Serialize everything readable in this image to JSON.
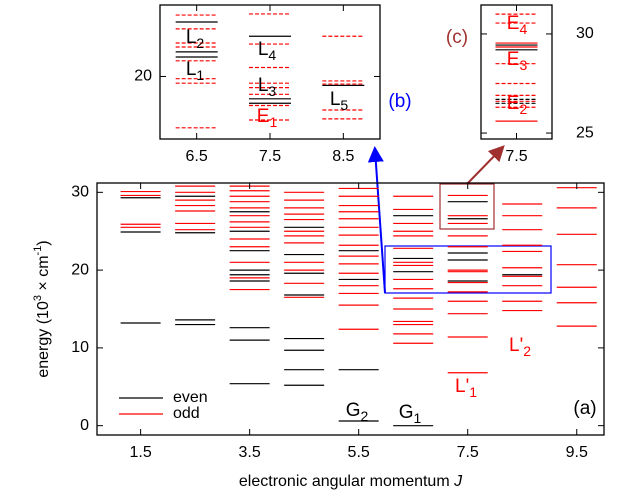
{
  "chart_data": [
    {
      "type": "energy-levels",
      "xlabel": [
        "electronic angular momentum ",
        "J"
      ],
      "ylabel": [
        "energy (10",
        "3",
        " × cm",
        "-1",
        ")"
      ],
      "xlim": [
        0.7,
        10
      ],
      "ylim": [
        -1.2,
        31.2
      ],
      "xticks": [
        1.5,
        3.5,
        5.5,
        7.5,
        9.5
      ],
      "yticks": [
        0,
        10,
        20,
        30
      ],
      "yaxis_side": "left",
      "legend": "lower left",
      "series": [
        {
          "name": "even",
          "color": "#000000",
          "dash": false,
          "x": [
            1.5,
            1.5,
            1.5,
            2.5,
            2.5,
            2.5,
            2.5,
            3.5,
            3.5,
            3.5,
            3.5,
            3.5,
            3.5,
            3.5,
            3.5,
            3.5,
            4.5,
            4.5,
            4.5,
            4.5,
            4.5,
            4.5,
            4.5,
            4.5,
            5.5,
            5.5,
            5.5,
            5.5,
            6.5,
            6.5,
            6.5,
            6.5,
            7.5,
            7.5,
            7.5,
            7.5,
            7.5,
            8.5
          ],
          "values": [
            13.2,
            24.9,
            29.3,
            13.0,
            13.6,
            24.8,
            29.5,
            5.4,
            11.0,
            12.6,
            18.6,
            19.4,
            20.0,
            22.5,
            25.0,
            27.5,
            5.2,
            7.2,
            9.7,
            11.2,
            16.8,
            19.6,
            22.0,
            25.5,
            0.6,
            7.2,
            18.8,
            22.5,
            0.0,
            19.8,
            21.5,
            27.0,
            18.6,
            21.3,
            22.2,
            26.6,
            28.8,
            19.4
          ]
        },
        {
          "name": "odd",
          "color": "#ff0000",
          "dash": false,
          "x": [
            1.5,
            1.5,
            1.5,
            1.5,
            2.5,
            2.5,
            2.5,
            2.5,
            2.5,
            2.5,
            2.5,
            3.5,
            3.5,
            3.5,
            3.5,
            3.5,
            3.5,
            3.5,
            3.5,
            3.5,
            3.5,
            3.5,
            3.5,
            3.5,
            4.5,
            4.5,
            4.5,
            4.5,
            4.5,
            4.5,
            4.5,
            4.5,
            4.5,
            4.5,
            4.5,
            4.5,
            5.5,
            5.5,
            5.5,
            5.5,
            5.5,
            5.5,
            5.5,
            5.5,
            5.5,
            5.5,
            5.5,
            5.5,
            5.5,
            5.5,
            5.5,
            6.5,
            6.5,
            6.5,
            6.5,
            6.5,
            6.5,
            6.5,
            6.5,
            6.5,
            6.5,
            6.5,
            6.5,
            6.5,
            6.5,
            6.5,
            6.5,
            7.5,
            7.5,
            7.5,
            7.5,
            7.5,
            7.5,
            7.5,
            7.5,
            7.5,
            7.5,
            7.5,
            7.5,
            7.5,
            8.5,
            8.5,
            8.5,
            8.5,
            8.5,
            8.5,
            8.5,
            8.5,
            8.5,
            8.5,
            9.5,
            9.5,
            9.5,
            9.5,
            9.5,
            9.5,
            9.5
          ],
          "values": [
            25.5,
            25.9,
            29.6,
            30.1,
            25.2,
            26.0,
            27.6,
            28.3,
            29.0,
            30.0,
            30.8,
            17.5,
            19.0,
            21.0,
            23.0,
            24.0,
            25.5,
            26.2,
            27.0,
            28.0,
            28.8,
            29.5,
            30.2,
            30.8,
            16.5,
            18.3,
            20.0,
            21.0,
            23.5,
            24.4,
            25.0,
            26.5,
            27.2,
            28.0,
            29.0,
            30.0,
            12.4,
            15.5,
            17.0,
            18.0,
            19.6,
            20.8,
            21.8,
            23.2,
            24.5,
            25.5,
            26.6,
            27.5,
            28.3,
            29.5,
            30.5,
            10.6,
            11.8,
            13.0,
            13.4,
            15.0,
            16.4,
            17.6,
            18.8,
            20.6,
            21.0,
            22.8,
            24.4,
            25.0,
            26.0,
            27.8,
            29.5,
            6.8,
            11.4,
            14.4,
            16.0,
            17.2,
            18.4,
            19.8,
            20.0,
            23.0,
            24.4,
            26.0,
            27.0,
            29.6,
            14.8,
            16.0,
            18.0,
            19.2,
            20.3,
            22.4,
            23.2,
            25.2,
            27.0,
            28.5,
            12.8,
            15.8,
            17.8,
            20.7,
            24.6,
            28.0,
            30.6
          ]
        }
      ],
      "annotations": [
        {
          "base": "G",
          "sub": "2",
          "color": "#000000"
        },
        {
          "base": "G",
          "sub": "1",
          "color": "#000000"
        },
        {
          "base": "L'",
          "sub": "1",
          "color": "#ff0000"
        },
        {
          "base": "L'",
          "sub": "2",
          "color": "#ff0000"
        },
        {
          "base": "(a)",
          "sub": "",
          "color": "#000000"
        }
      ]
    },
    {
      "type": "energy-levels",
      "xlim": [
        6,
        9
      ],
      "ylim": [
        17.2,
        23.2
      ],
      "xticks": [
        6.5,
        7.5,
        8.5
      ],
      "yticks": [
        20
      ],
      "yaxis_side": "left",
      "series": [
        {
          "color": "#000000",
          "dash": false,
          "x": [
            6.5,
            6.5,
            6.5,
            7.5,
            7.5,
            7.5,
            8.5
          ],
          "values": [
            22.44,
            21.1,
            20.87,
            21.8,
            19.0,
            18.8,
            19.6
          ]
        },
        {
          "color": "#ff0000",
          "dash": true,
          "x": [
            6.5,
            6.5,
            6.5,
            6.5,
            6.5,
            6.5,
            6.5,
            6.5,
            7.5,
            7.5,
            7.5,
            7.5,
            7.5,
            7.5,
            7.5,
            7.5,
            8.5,
            8.5,
            8.5,
            8.5,
            8.5
          ],
          "values": [
            22.75,
            22.13,
            21.5,
            21.32,
            20.7,
            19.9,
            19.7,
            17.7,
            22.8,
            21.45,
            20.4,
            19.7,
            19.5,
            19.2,
            18.7,
            18.05,
            21.8,
            19.8,
            19.66,
            18.5,
            18.1
          ]
        }
      ],
      "annotations": [
        {
          "base": "L",
          "sub": "2",
          "color": "#000000"
        },
        {
          "base": "L",
          "sub": "1",
          "color": "#000000"
        },
        {
          "base": "L",
          "sub": "4",
          "color": "#000000"
        },
        {
          "base": "L",
          "sub": "3",
          "color": "#000000"
        },
        {
          "base": "E",
          "sub": "1",
          "color": "#ff0000"
        },
        {
          "base": "L",
          "sub": "5",
          "color": "#000000"
        },
        {
          "base": "(b)",
          "sub": "",
          "color": "#0000ff"
        }
      ]
    },
    {
      "type": "energy-levels",
      "xlim": [
        7,
        8
      ],
      "ylim": [
        24.7,
        31.46
      ],
      "xticks": [
        7.5
      ],
      "yticks": [
        25,
        30
      ],
      "yaxis_side": "right",
      "series": [
        {
          "color": "#000000",
          "dash": false,
          "x": [
            7.5,
            7.5
          ],
          "values": [
            29.44,
            29.2
          ]
        },
        {
          "color": "#ff0000",
          "dash": false,
          "x": [
            7.5,
            7.5,
            7.5
          ],
          "values": [
            29.54,
            29.34,
            25.6
          ]
        },
        {
          "color": "#ff0000",
          "dash": true,
          "x": [
            7.5,
            7.5,
            7.5,
            7.5,
            7.5,
            7.5,
            7.5
          ],
          "values": [
            31.0,
            30.55,
            28.5,
            27.5,
            26.9,
            26.6,
            26.3
          ]
        },
        {
          "color": "#000000",
          "dash": true,
          "x": [
            7.5,
            7.5
          ],
          "values": [
            26.7,
            26.5
          ]
        }
      ],
      "annotations": [
        {
          "base": "E",
          "sub": "4",
          "color": "#ff0000"
        },
        {
          "base": "E",
          "sub": "3",
          "color": "#ff0000"
        },
        {
          "base": "E",
          "sub": "2",
          "color": "#ff0000"
        },
        {
          "base": "(c)",
          "sub": "",
          "color": "#a03030"
        }
      ]
    }
  ]
}
